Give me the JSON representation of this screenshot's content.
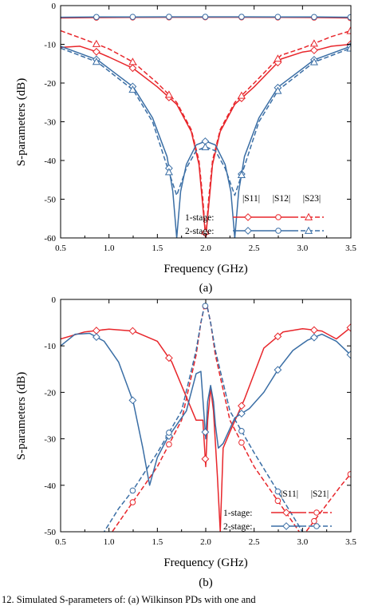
{
  "colors": {
    "red": "#e8262b",
    "blue": "#3a6ea5"
  },
  "chart_data": [
    {
      "type": "line",
      "panel_label": "(a)",
      "xlabel": "Frequency (GHz)",
      "ylabel": "S-parameters (dB)",
      "xlim": [
        0.5,
        3.5
      ],
      "ylim": [
        -60,
        0
      ],
      "xticks": [
        0.5,
        1.0,
        1.5,
        2.0,
        2.5,
        3.0,
        3.5
      ],
      "yticks": [
        0,
        -10,
        -20,
        -30,
        -40,
        -50,
        -60
      ],
      "legend_placement": "bottom-right",
      "legend_headers": [
        "|S11|",
        "|S12|",
        "|S23|"
      ],
      "legend_rows": [
        "1-stage:",
        "2-stage:"
      ],
      "series": [
        {
          "name": "1-stage |S11|",
          "color": "#e8262b",
          "dash": "solid",
          "marker": "diamond",
          "x": [
            0.5,
            0.7,
            0.88,
            1.0,
            1.25,
            1.5,
            1.7,
            1.85,
            1.93,
            1.97,
            2.0,
            2.03,
            2.07,
            2.15,
            2.3,
            2.5,
            2.78,
            3.0,
            3.16,
            3.3,
            3.5
          ],
          "y": [
            -10.8,
            -10.5,
            -12,
            -13.3,
            -16.2,
            -21,
            -25.5,
            -32.5,
            -41,
            -52,
            -60,
            -52,
            -41,
            -32.5,
            -25.5,
            -21,
            -13.8,
            -12,
            -11.4,
            -10.5,
            -10
          ]
        },
        {
          "name": "1-stage |S12|",
          "color": "#e8262b",
          "dash": "solid",
          "marker": "circle",
          "x": [
            0.5,
            0.88,
            1.25,
            1.63,
            2.0,
            2.38,
            2.78,
            3.16,
            3.5
          ],
          "y": [
            -3.2,
            -3.1,
            -3.05,
            -3.02,
            -3.01,
            -3.02,
            -3.05,
            -3.1,
            -3.2
          ]
        },
        {
          "name": "1-stage |S23|",
          "color": "#e8262b",
          "dash": "dashed",
          "marker": "triangle",
          "x": [
            0.5,
            0.7,
            0.88,
            1.0,
            1.25,
            1.5,
            1.7,
            1.85,
            1.93,
            1.97,
            2.0,
            2.03,
            2.07,
            2.15,
            2.3,
            2.5,
            2.78,
            3.0,
            3.16,
            3.3,
            3.5
          ],
          "y": [
            -6.5,
            -8.3,
            -10,
            -11.2,
            -14.6,
            -20,
            -25,
            -32,
            -40,
            -50,
            -60,
            -50,
            -40,
            -32,
            -25,
            -20,
            -12.8,
            -11,
            -9.4,
            -8,
            -6.5
          ]
        },
        {
          "name": "2-stage |S11|",
          "color": "#3a6ea5",
          "dash": "solid",
          "marker": "diamond",
          "x": [
            0.5,
            0.88,
            1.25,
            1.45,
            1.6,
            1.66,
            1.7,
            1.74,
            1.8,
            1.9,
            2.0,
            2.1,
            2.2,
            2.26,
            2.3,
            2.34,
            2.4,
            2.55,
            2.75,
            3.12,
            3.5
          ],
          "y": [
            -10.5,
            -14,
            -21,
            -29,
            -39,
            -48,
            -60,
            -48,
            -41,
            -36,
            -35,
            -36,
            -41,
            -48,
            -60,
            -48,
            -39,
            -29,
            -21,
            -14,
            -10.5
          ]
        },
        {
          "name": "2-stage |S12|",
          "color": "#3a6ea5",
          "dash": "solid",
          "marker": "circle",
          "x": [
            0.5,
            0.88,
            1.25,
            1.63,
            2.0,
            2.38,
            2.78,
            3.16,
            3.5
          ],
          "y": [
            -3.0,
            -2.95,
            -2.92,
            -2.9,
            -2.9,
            -2.9,
            -2.92,
            -2.95,
            -3.0
          ]
        },
        {
          "name": "2-stage |S23|",
          "color": "#3a6ea5",
          "dash": "dashed",
          "marker": "triangle",
          "x": [
            0.5,
            0.88,
            1.25,
            1.45,
            1.62,
            1.7,
            1.8,
            1.9,
            2.0,
            2.1,
            2.2,
            2.3,
            2.38,
            2.55,
            2.75,
            3.12,
            3.5
          ],
          "y": [
            -11,
            -14.6,
            -21.8,
            -30,
            -43,
            -49,
            -42,
            -37.5,
            -36.5,
            -37.5,
            -42,
            -49,
            -43,
            -30,
            -21.8,
            -14.6,
            -11
          ]
        }
      ]
    },
    {
      "type": "line",
      "panel_label": "(b)",
      "xlabel": "Frequency (GHz)",
      "ylabel": "S-parameters (dB)",
      "xlim": [
        0.5,
        3.5
      ],
      "ylim": [
        -50,
        0
      ],
      "xticks": [
        0.5,
        1.0,
        1.5,
        2.0,
        2.5,
        3.0,
        3.5
      ],
      "yticks": [
        0,
        -10,
        -20,
        -30,
        -40,
        -50
      ],
      "legend_placement": "bottom-right",
      "legend_headers": [
        "|S11|",
        "|S21|"
      ],
      "legend_rows": [
        "1-stage:",
        "2-stage:"
      ],
      "series": [
        {
          "name": "1-stage |S11|",
          "color": "#e8262b",
          "dash": "solid",
          "marker": "diamond",
          "x": [
            0.5,
            0.75,
            1.0,
            1.25,
            1.5,
            1.65,
            1.8,
            1.9,
            1.97,
            2.0,
            2.02,
            2.05,
            2.08,
            2.12,
            2.15,
            2.18,
            2.25,
            2.4,
            2.6,
            2.8,
            3.0,
            3.2,
            3.35,
            3.5
          ],
          "y": [
            -8.5,
            -7,
            -6.4,
            -6.8,
            -9,
            -13.5,
            -21,
            -26,
            -26,
            -36,
            -26,
            -19,
            -24,
            -38,
            -50,
            -32,
            -28.5,
            -21.5,
            -10.5,
            -7,
            -6.3,
            -6.8,
            -8.5,
            -6
          ]
        },
        {
          "name": "1-stage |S21|",
          "color": "#e8262b",
          "dash": "dashed",
          "marker": "circle",
          "x": [
            0.5,
            1.0,
            1.5,
            1.75,
            1.9,
            1.95,
            1.98,
            2.0,
            2.02,
            2.05,
            2.1,
            2.25,
            2.5,
            3.0,
            3.4,
            3.5
          ],
          "y": [
            -72,
            -51,
            -36,
            -26,
            -12,
            -5,
            -2,
            -1.3,
            -2,
            -5,
            -12,
            -26,
            -36,
            -51,
            -40,
            -37.5
          ]
        },
        {
          "name": "2-stage |S11|",
          "color": "#3a6ea5",
          "dash": "solid",
          "marker": "diamond",
          "x": [
            0.5,
            0.65,
            0.8,
            0.95,
            1.1,
            1.25,
            1.35,
            1.42,
            1.5,
            1.6,
            1.7,
            1.8,
            1.9,
            1.95,
            2.0,
            2.02,
            2.05,
            2.08,
            2.1,
            2.13,
            2.18,
            2.3,
            2.45,
            2.6,
            2.75,
            2.9,
            3.05,
            3.2,
            3.35,
            3.5
          ],
          "y": [
            -10,
            -7.5,
            -7.3,
            -9,
            -13.5,
            -22,
            -32,
            -40,
            -34,
            -30,
            -27,
            -24,
            -16,
            -15.5,
            -30,
            -22,
            -18.5,
            -22,
            -27,
            -32,
            -31,
            -25.5,
            -23.5,
            -20,
            -15,
            -11,
            -8.8,
            -7.5,
            -9,
            -12
          ]
        },
        {
          "name": "2-stage |S21|",
          "color": "#3a6ea5",
          "dash": "dashed",
          "marker": "circle",
          "x": [
            0.5,
            0.95,
            1.1,
            1.25,
            1.5,
            1.75,
            1.9,
            1.95,
            1.98,
            2.0,
            2.02,
            2.05,
            2.1,
            2.25,
            2.5,
            3.0,
            3.5
          ],
          "y": [
            -72,
            -50,
            -45,
            -41,
            -33,
            -24,
            -11,
            -5,
            -2,
            -1.2,
            -2,
            -5,
            -11,
            -24,
            -33,
            -50,
            -72
          ]
        }
      ]
    }
  ],
  "caption": "12.   Simulated S-parameters of: (a) Wilkinson PDs with one and"
}
